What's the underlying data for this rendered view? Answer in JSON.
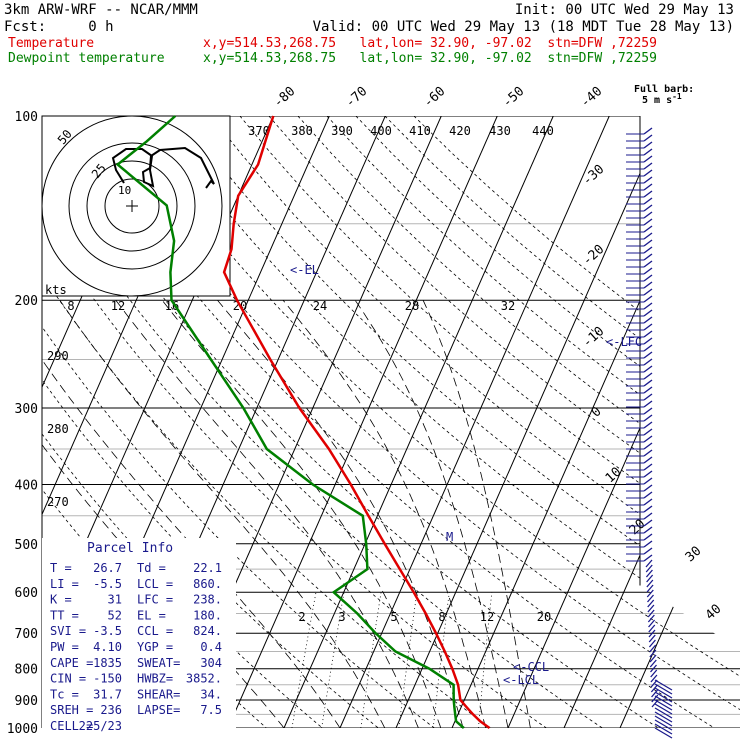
{
  "header": {
    "model_line": "3km ARW-WRF -- NCAR/MMM",
    "init_line": "Init: 00 UTC Wed 29 May 13",
    "fcst_line": "Fcst:     0 h",
    "valid_line": "Valid: 00 UTC Wed 29 May 13 (18 MDT Tue 28 May 13)",
    "temp_label": "Temperature",
    "temp_loc": "x,y=514.53,268.75   lat,lon= 32.90, -97.02  stn=DFW ,72259",
    "dew_label": "Dewpoint temperature",
    "dew_loc": "x,y=514.53,268.75   lat,lon= 32.90, -97.02  stn=DFW ,72259"
  },
  "barb_key": {
    "line1": "Full barb:",
    "line2": "5 m s",
    "sup": "-1"
  },
  "parcel_info": {
    "title": "Parcel Info",
    "rows": [
      [
        "T  =",
        "26.7",
        "Td =",
        "22.1"
      ],
      [
        "LI =",
        "-5.5",
        "LCL =",
        "860."
      ],
      [
        "K  =",
        "31",
        "LFC =",
        "238."
      ],
      [
        "TT =",
        "52",
        "EL =",
        "180."
      ],
      [
        "SVI =",
        "-3.5",
        "CCL =",
        "824."
      ],
      [
        "PW =",
        "4.10",
        "YGP =",
        "0.4"
      ],
      [
        "CAPE =",
        "1835",
        "SWEAT=",
        "304"
      ],
      [
        "CIN =",
        "-150",
        "HWBZ=",
        "3852."
      ],
      [
        "Tc =",
        "31.7",
        "SHEAR=",
        "34."
      ],
      [
        "SREH =",
        "236",
        "LAPSE=",
        "7.5"
      ],
      [
        "CELL =",
        "225/23",
        "",
        ""
      ]
    ]
  },
  "hodograph": {
    "units": "kts",
    "ring_labels": [
      "50",
      "25"
    ]
  },
  "colors": {
    "temperature": "#e00000",
    "dewpoint": "#008000",
    "annotation": "#1a1a8c",
    "barbs": "#1a1a8c"
  },
  "chart_data": {
    "type": "line",
    "yscale": "log",
    "pressure_levels": [
      "100",
      "200",
      "300",
      "400",
      "500",
      "600",
      "700",
      "800",
      "900",
      "1000"
    ],
    "isotherms": [
      "-80",
      "-70",
      "-60",
      "-50",
      "-40",
      "-30",
      "-20",
      "-10",
      "0",
      "10",
      "20",
      "30",
      "40"
    ],
    "theta_labels": [
      "370",
      "380",
      "390",
      "400",
      "410",
      "420",
      "430",
      "440"
    ],
    "theta_left": [
      "290",
      "280",
      "270"
    ],
    "theta_e_labels": [
      "8",
      "12",
      "16",
      "20",
      "24",
      "28",
      "32"
    ],
    "mixing_labels": [
      "2",
      "3",
      "5",
      "8",
      "12",
      "20"
    ],
    "annotations": [
      "<-EL",
      "<-LFC",
      "<-CCL",
      "<-LCL",
      "M"
    ],
    "series": [
      {
        "name": "Temperature",
        "points": [
          [
            1000,
            26.7
          ],
          [
            975,
            24.5
          ],
          [
            950,
            22.7
          ],
          [
            925,
            21.0
          ],
          [
            900,
            19.3
          ],
          [
            850,
            17.7
          ],
          [
            800,
            15.4
          ],
          [
            750,
            12.7
          ],
          [
            700,
            9.7
          ],
          [
            650,
            6.3
          ],
          [
            600,
            2.5
          ],
          [
            550,
            -1.8
          ],
          [
            500,
            -6.5
          ],
          [
            450,
            -11.6
          ],
          [
            400,
            -17.2
          ],
          [
            350,
            -23.9
          ],
          [
            300,
            -32.4
          ],
          [
            250,
            -41.4
          ],
          [
            200,
            -52.0
          ],
          [
            180,
            -56.5
          ],
          [
            165,
            -57.0
          ],
          [
            150,
            -58.6
          ],
          [
            135,
            -60.0
          ],
          [
            120,
            -58.9
          ],
          [
            100,
            -60.0
          ]
        ]
      },
      {
        "name": "Dewpoint temperature",
        "points": [
          [
            1000,
            22.1
          ],
          [
            975,
            20.2
          ],
          [
            950,
            19.5
          ],
          [
            925,
            18.8
          ],
          [
            900,
            18.1
          ],
          [
            850,
            16.9
          ],
          [
            800,
            11.3
          ],
          [
            750,
            3.9
          ],
          [
            700,
            -1.1
          ],
          [
            650,
            -5.9
          ],
          [
            600,
            -11.8
          ],
          [
            550,
            -7.6
          ],
          [
            500,
            -9.8
          ],
          [
            450,
            -12.6
          ],
          [
            400,
            -24.0
          ],
          [
            350,
            -35.0
          ],
          [
            300,
            -42.4
          ],
          [
            250,
            -52.0
          ],
          [
            200,
            -63.7
          ],
          [
            180,
            -66.1
          ],
          [
            160,
            -67.9
          ],
          [
            140,
            -72.0
          ],
          [
            120,
            -84.0
          ],
          [
            110,
            -80.6
          ],
          [
            100,
            -77.5
          ]
        ]
      }
    ]
  }
}
